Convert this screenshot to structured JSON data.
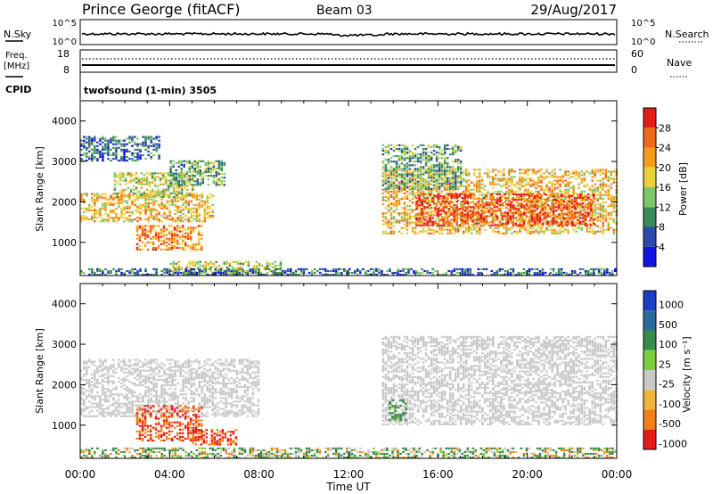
{
  "header": {
    "title": "Prince George (fitACF)",
    "beam": "Beam 03",
    "date": "29/Aug/2017"
  },
  "top_panel": {
    "left_label": "N.Sky",
    "left_ticks": [
      "10^5",
      "10^0"
    ],
    "right_label": "N.Search",
    "right_ticks": [
      "10^5",
      "10^0"
    ]
  },
  "freq_panel": {
    "left_label": "Freq.",
    "left_unit": "[MHz]",
    "left_ticks": [
      "18",
      "8"
    ],
    "right_label": "Nave",
    "right_ticks": [
      "60",
      "0"
    ]
  },
  "cpid": {
    "label": "CPID",
    "value": "twofsound (1-min) 3505"
  },
  "x_axis": {
    "label": "Time UT",
    "ticks": [
      "00:00",
      "04:00",
      "08:00",
      "12:00",
      "16:00",
      "20:00",
      "00:00"
    ]
  },
  "power_panel": {
    "ylabel": "Slant Range [km]",
    "yticks": [
      "1000",
      "2000",
      "3000",
      "4000"
    ],
    "cbar_label": "Power [dB]",
    "cbar_ticks": [
      "4",
      "8",
      "12",
      "16",
      "20",
      "24",
      "28"
    ],
    "cbar_colors": [
      "#1414e6",
      "#2a4aa8",
      "#3c8a5a",
      "#7ec86a",
      "#e8d23c",
      "#f39c1a",
      "#f06818",
      "#e61a1a"
    ]
  },
  "velocity_panel": {
    "ylabel": "Slant Range [km]",
    "yticks": [
      "1000",
      "2000",
      "3000",
      "4000"
    ],
    "cbar_label": "Velocity  [m s⁻¹]",
    "cbar_ticks": [
      "1000",
      "500",
      "100",
      "25",
      "-25",
      "-100",
      "-500",
      "-1000"
    ],
    "cbar_colors": [
      "#1a3ec8",
      "#2a6a9a",
      "#3a8a4a",
      "#7ccf3c",
      "#c8c8c8",
      "#f0b43c",
      "#f08018",
      "#e61a1a"
    ]
  },
  "chart_data": {
    "type": "heatmap",
    "x_range_hours": [
      0,
      24
    ],
    "y_range_km": [
      180,
      4500
    ],
    "power_bands": [
      {
        "t": [
          0,
          6
        ],
        "r": [
          1500,
          2200
        ],
        "db": 20
      },
      {
        "t": [
          1.5,
          5
        ],
        "r": [
          2100,
          2700
        ],
        "db": 16
      },
      {
        "t": [
          4,
          6.5
        ],
        "r": [
          2400,
          3000
        ],
        "db": 12
      },
      {
        "t": [
          0,
          3.5
        ],
        "r": [
          3000,
          3600
        ],
        "db": 8
      },
      {
        "t": [
          2.5,
          5.5
        ],
        "r": [
          800,
          1400
        ],
        "db": 24
      },
      {
        "t": [
          4,
          9
        ],
        "r": [
          180,
          500
        ],
        "db": 16
      },
      {
        "t": [
          13.5,
          24
        ],
        "r": [
          1200,
          2800
        ],
        "db": 20
      },
      {
        "t": [
          15,
          23
        ],
        "r": [
          1400,
          2200
        ],
        "db": 28
      },
      {
        "t": [
          13.5,
          17
        ],
        "r": [
          2300,
          3400
        ],
        "db": 12
      },
      {
        "t": [
          0,
          24
        ],
        "r": [
          180,
          350
        ],
        "db": 8
      }
    ],
    "velocity_bands": [
      {
        "t": [
          0,
          8
        ],
        "r": [
          1200,
          2600
        ],
        "v": 0
      },
      {
        "t": [
          2.5,
          5.5
        ],
        "r": [
          600,
          1500
        ],
        "v": -300
      },
      {
        "t": [
          5,
          7
        ],
        "r": [
          500,
          900
        ],
        "v": -300
      },
      {
        "t": [
          13.5,
          24
        ],
        "r": [
          1000,
          3200
        ],
        "v": 0
      },
      {
        "t": [
          13.8,
          14.6
        ],
        "r": [
          1100,
          1600
        ],
        "v": 150
      },
      {
        "t": [
          0,
          24
        ],
        "r": [
          180,
          450
        ],
        "v": 50
      }
    ]
  }
}
